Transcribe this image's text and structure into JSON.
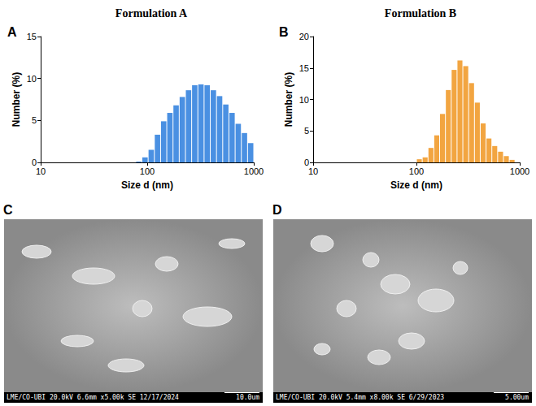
{
  "chart_data": [
    {
      "type": "histogram",
      "panel": "A",
      "title": "Formulation A",
      "x_label": "Size d (nm)",
      "y_label": "Number (%)",
      "bins": [
        78,
        89.2,
        102.0,
        116.7,
        133.5,
        152.6,
        174.6,
        199.7,
        228.4,
        261.2,
        298.7,
        341.6,
        390.7,
        446.9,
        511.1,
        584.5,
        668.5,
        764.6,
        874.4,
        1000
      ],
      "counts": [
        0.1,
        0.6,
        1.5,
        3.3,
        4.9,
        5.9,
        6.8,
        7.8,
        8.6,
        9.2,
        9.3,
        9.2,
        8.6,
        7.9,
        6.9,
        5.9,
        4.6,
        3.5,
        2.3
      ],
      "color": "#4a90e2",
      "log": "x",
      "xlim": [
        10,
        1000
      ],
      "xticks": [
        10,
        100,
        1000
      ],
      "ylim": [
        0,
        15
      ],
      "yticks": [
        0,
        5,
        10,
        15
      ],
      "grid": false
    },
    {
      "type": "histogram",
      "panel": "B",
      "title": "Formulation B",
      "x_label": "Size d (nm)",
      "y_label": "Number (%)",
      "bins": [
        100,
        113.8,
        129.5,
        147.4,
        167.7,
        190.9,
        217.2,
        247.2,
        281.3,
        320.2,
        364.4,
        414.6,
        471.9,
        537.0,
        611.1,
        695.5,
        791.4,
        900
      ],
      "counts": [
        0.5,
        0.8,
        2.3,
        4.3,
        7.7,
        11.5,
        14.7,
        16.2,
        15.3,
        12.6,
        9.5,
        6.2,
        3.8,
        2.6,
        1.7,
        1.0,
        0.4
      ],
      "color": "#f2a541",
      "log": "x",
      "xlim": [
        10,
        1000
      ],
      "xticks": [
        10,
        100,
        1000
      ],
      "ylim": [
        0,
        20
      ],
      "yticks": [
        0,
        5,
        10,
        15,
        20
      ],
      "grid": false
    }
  ],
  "images": [
    {
      "panel": "C",
      "info_bar": {
        "lab": "LME/CO-UBI",
        "voltage": "20.0kV",
        "working_distance": "6.6mm",
        "magnification": "x5.00k",
        "detector": "SE",
        "date": "12/17/2024",
        "scale_bar": "10.0um"
      }
    },
    {
      "panel": "D",
      "info_bar": {
        "lab": "LME/CO-UBI",
        "voltage": "20.0kV",
        "working_distance": "5.4mm",
        "magnification": "x8.00k",
        "detector": "SE",
        "date": "6/29/2023",
        "scale_bar": "5.00um"
      }
    }
  ]
}
